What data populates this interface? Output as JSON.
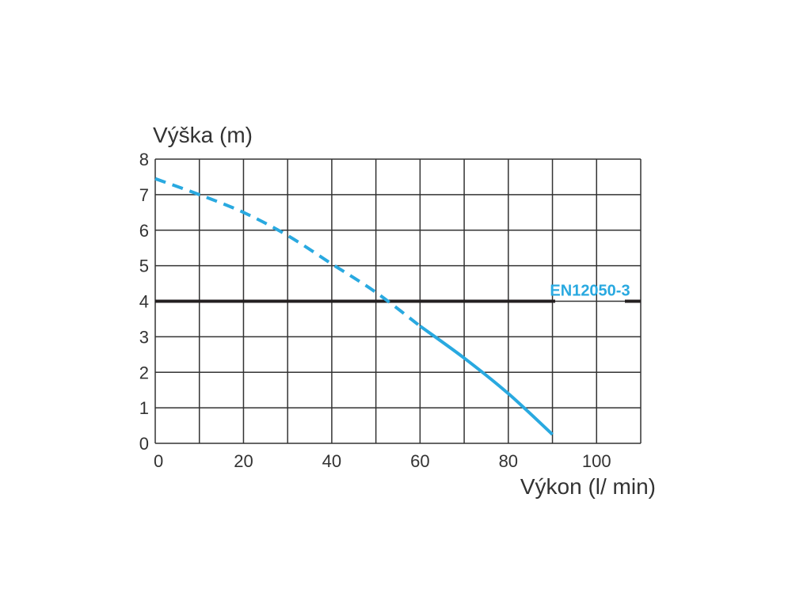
{
  "chart_data": {
    "type": "line",
    "ylabel": "Výška (m)",
    "xlabel": "Výkon (l/ min)",
    "xlim": [
      0,
      110
    ],
    "ylim": [
      0,
      8
    ],
    "x_ticks": [
      0,
      20,
      40,
      60,
      80,
      100
    ],
    "y_ticks": [
      0,
      1,
      2,
      3,
      4,
      5,
      6,
      7,
      8
    ],
    "grid": true,
    "series": [
      {
        "style": "dashed",
        "color": "#29a9e0",
        "points": [
          [
            0,
            7.45
          ],
          [
            10,
            7.0
          ],
          [
            20,
            6.5
          ],
          [
            30,
            5.85
          ],
          [
            40,
            5.05
          ],
          [
            50,
            4.25
          ],
          [
            60,
            3.3
          ]
        ]
      },
      {
        "style": "solid",
        "color": "#29a9e0",
        "points": [
          [
            60,
            3.3
          ],
          [
            70,
            2.4
          ],
          [
            80,
            1.4
          ],
          [
            90,
            0.25
          ]
        ]
      }
    ],
    "reference_line": {
      "y": 4,
      "color": "#231f20",
      "label": "EN12050-3"
    }
  }
}
